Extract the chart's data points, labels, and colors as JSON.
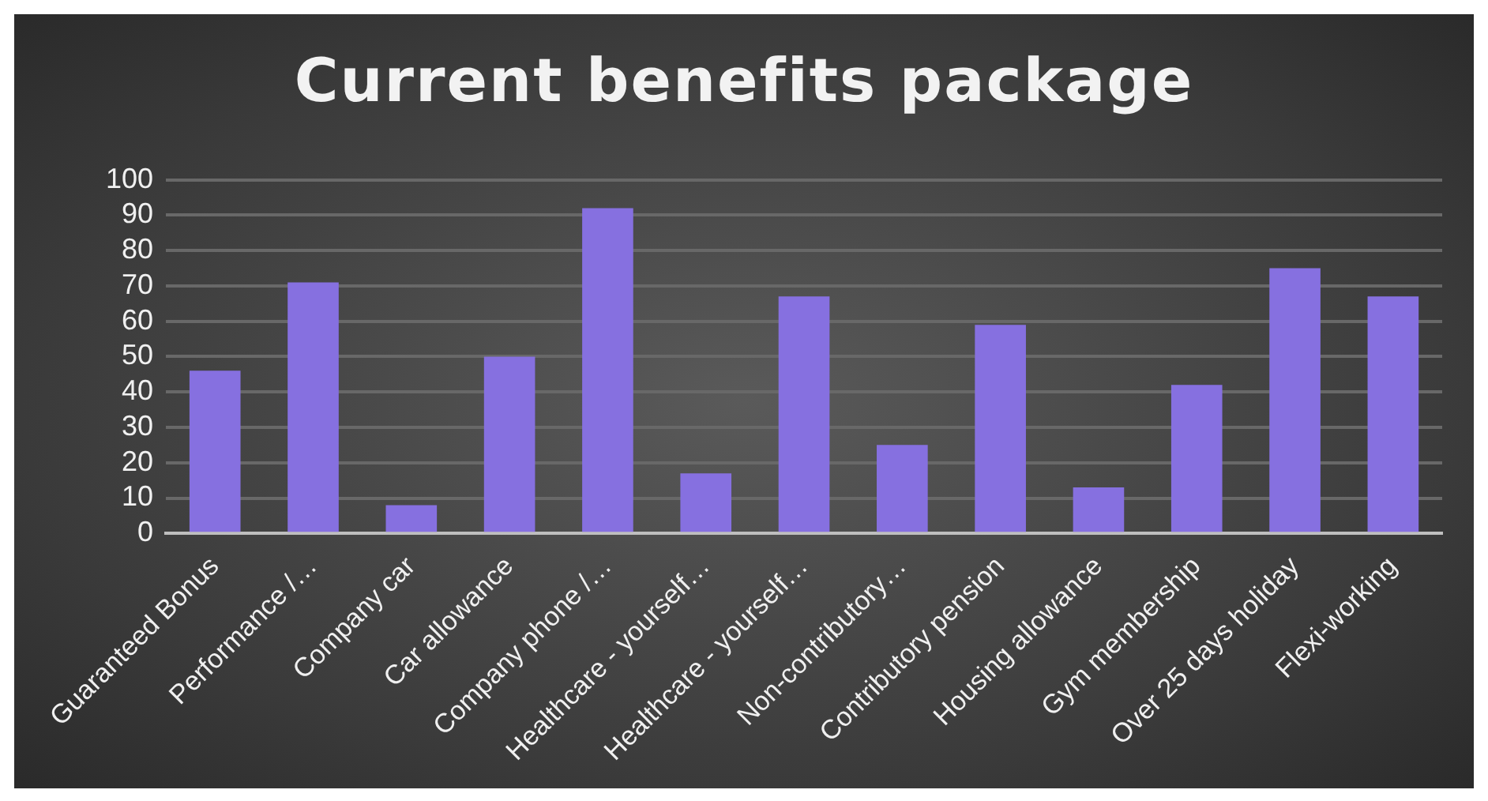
{
  "chart_data": {
    "type": "bar",
    "title": "Current benefits package",
    "categories": [
      "Guaranteed Bonus",
      "Performance /…",
      "Company car",
      "Car allowance",
      "Company phone /…",
      "Healthcare - yourself…",
      "Healthcare - yourself…",
      "Non-contributory…",
      "Contributory pension",
      "Housing allowance",
      "Gym membership",
      "Over 25 days holiday",
      "Flexi-working"
    ],
    "values": [
      46,
      71,
      8,
      50,
      92,
      17,
      67,
      25,
      59,
      13,
      42,
      75,
      67
    ],
    "color": "#8670e0",
    "ylim": [
      0,
      100
    ],
    "yticks": [
      0,
      10,
      20,
      30,
      40,
      50,
      60,
      70,
      80,
      90,
      100
    ],
    "grid": "y",
    "legend": false
  }
}
